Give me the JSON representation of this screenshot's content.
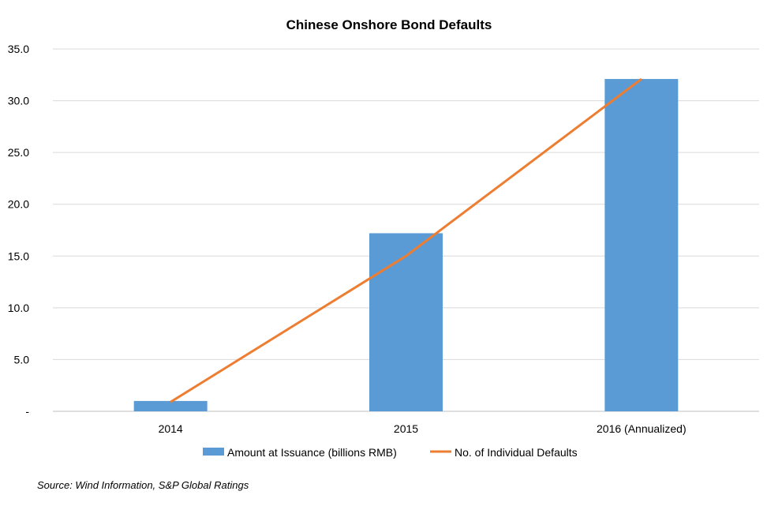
{
  "chart_data": {
    "type": "bar",
    "title": "Chinese Onshore Bond Defaults",
    "categories": [
      "2014",
      "2015",
      "2016 (Annualized)"
    ],
    "series": [
      {
        "name": "Amount at Issuance (billions RMB)",
        "type": "bar",
        "values": [
          1.0,
          17.2,
          32.1
        ],
        "color": "#5B9BD5"
      },
      {
        "name": "No. of Individual Defaults",
        "type": "line",
        "values": [
          0.9,
          15.0,
          32.1
        ],
        "color": "#ED7D31"
      }
    ],
    "y_ticks": [
      "-",
      "5.0",
      "10.0",
      "15.0",
      "20.0",
      "25.0",
      "30.0",
      "35.0"
    ],
    "ylim": [
      0,
      35
    ],
    "grid": true,
    "legend": "bottom",
    "source": "Source: Wind Information, S&P Global Ratings"
  }
}
